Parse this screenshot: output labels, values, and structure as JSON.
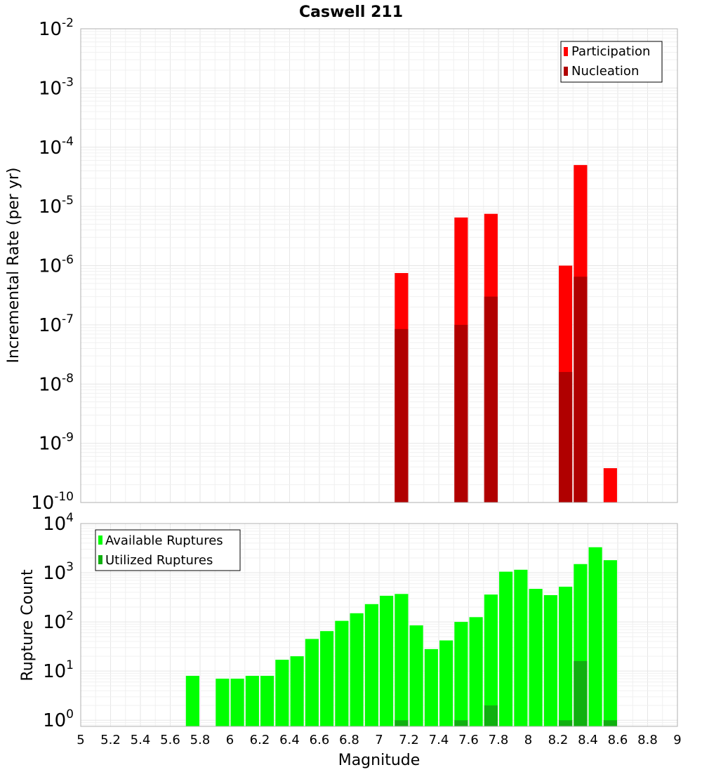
{
  "title": "Caswell 211",
  "xlabel": "Magnitude",
  "x_ticks": [
    "5",
    "5.2",
    "5.4",
    "5.6",
    "5.8",
    "6",
    "6.2",
    "6.4",
    "6.6",
    "6.8",
    "7",
    "7.2",
    "7.4",
    "7.6",
    "7.8",
    "8",
    "8.2",
    "8.4",
    "8.6",
    "8.8",
    "9"
  ],
  "colors": {
    "participation": "#ff0000",
    "nucleation": "#b00000",
    "available": "#00ff00",
    "utilized": "#10b010"
  },
  "chart_data": [
    {
      "type": "bar",
      "ylabel": "Incremental Rate (per yr)",
      "yscale": "log",
      "xlim": [
        5,
        9
      ],
      "ylim": [
        1e-10,
        0.01
      ],
      "y_tick_bases": [
        "10",
        "10",
        "10",
        "10",
        "10",
        "10",
        "10",
        "10",
        "10"
      ],
      "y_tick_exponents": [
        "-10",
        "-9",
        "-8",
        "-7",
        "-6",
        "-5",
        "-4",
        "-3",
        "-2"
      ],
      "legend_position": "top-right",
      "series": [
        {
          "name": "Participation",
          "x": [
            7.15,
            7.55,
            7.75,
            8.25,
            8.35,
            8.55
          ],
          "values": [
            7.5e-07,
            6.5e-06,
            7.5e-06,
            1e-06,
            5e-05,
            3.8e-10
          ]
        },
        {
          "name": "Nucleation",
          "x": [
            7.15,
            7.55,
            7.75,
            8.25,
            8.35
          ],
          "values": [
            8.5e-08,
            1e-07,
            3e-07,
            1.6e-08,
            6.5e-07
          ]
        }
      ]
    },
    {
      "type": "bar",
      "ylabel": "Rupture Count",
      "yscale": "log",
      "xlim": [
        5,
        9
      ],
      "ylim": [
        0.75,
        10000
      ],
      "y_tick_bases": [
        "10",
        "10",
        "10",
        "10",
        "10"
      ],
      "y_tick_exponents": [
        "0",
        "1",
        "2",
        "3",
        "4"
      ],
      "legend_position": "top-left",
      "series": [
        {
          "name": "Available Ruptures",
          "x": [
            5.75,
            5.95,
            6.05,
            6.15,
            6.25,
            6.35,
            6.45,
            6.55,
            6.65,
            6.75,
            6.85,
            6.95,
            7.05,
            7.15,
            7.25,
            7.35,
            7.45,
            7.55,
            7.65,
            7.75,
            7.85,
            7.95,
            8.05,
            8.15,
            8.25,
            8.35,
            8.45,
            8.55
          ],
          "values": [
            8,
            7,
            7,
            8,
            8,
            17,
            20,
            45,
            65,
            105,
            150,
            230,
            340,
            370,
            85,
            28,
            42,
            100,
            125,
            360,
            1050,
            1150,
            470,
            350,
            520,
            1500,
            3300,
            1800
          ]
        },
        {
          "name": "Utilized Ruptures",
          "x": [
            7.15,
            7.55,
            7.75,
            8.25,
            8.35,
            8.55
          ],
          "values": [
            1,
            1,
            2,
            1,
            16,
            1
          ]
        }
      ]
    }
  ]
}
